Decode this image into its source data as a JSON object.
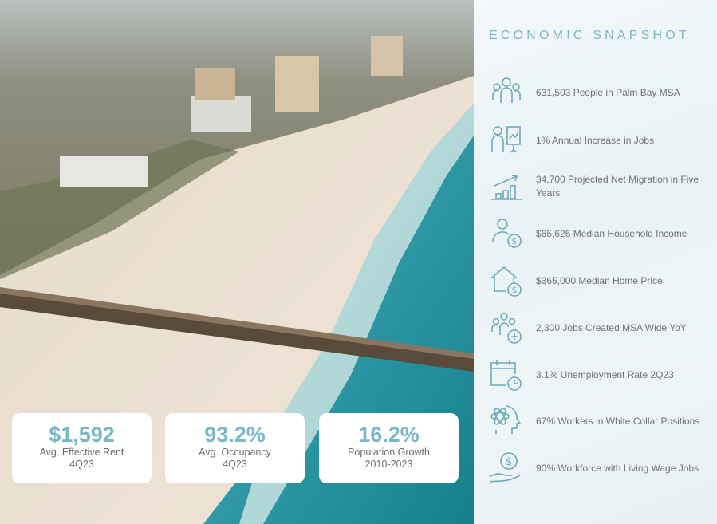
{
  "panel": {
    "title": "ECONOMIC SNAPSHOT",
    "items": [
      {
        "icon": "people-group-icon",
        "text": "631,503 People in Palm Bay MSA"
      },
      {
        "icon": "presenter-chart-icon",
        "text": "1% Annual Increase in Jobs"
      },
      {
        "icon": "growth-bars-icon",
        "text": "34,700 Projected Net Migration in Five Years"
      },
      {
        "icon": "person-dollar-icon",
        "text": "$65,626 Median Household Income"
      },
      {
        "icon": "house-dollar-icon",
        "text": "$365,000 Median Home Price"
      },
      {
        "icon": "people-plus-icon",
        "text": "2,300 Jobs Created MSA Wide YoY"
      },
      {
        "icon": "calendar-clock-icon",
        "text": "3.1% Unemployment Rate 2Q23"
      },
      {
        "icon": "head-atom-icon",
        "text": "67% Workers in White Collar Positions"
      },
      {
        "icon": "hand-coin-icon",
        "text": "90% Workforce with Living Wage Jobs"
      }
    ]
  },
  "cards": [
    {
      "value": "$1,592",
      "label": "Avg. Effective Rent",
      "period": "4Q23"
    },
    {
      "value": "93.2%",
      "label": "Avg. Occupancy",
      "period": "4Q23"
    },
    {
      "value": "16.2%",
      "label": "Population Growth",
      "period": "2010-2023"
    }
  ],
  "colors": {
    "accent": "#7ab8c8",
    "text": "#6f7376",
    "panel": "#eef5f7"
  }
}
